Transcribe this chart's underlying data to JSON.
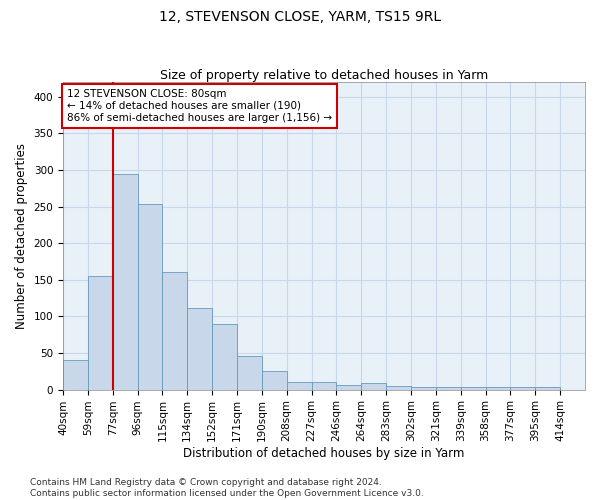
{
  "title": "12, STEVENSON CLOSE, YARM, TS15 9RL",
  "subtitle": "Size of property relative to detached houses in Yarm",
  "xlabel": "Distribution of detached houses by size in Yarm",
  "ylabel": "Number of detached properties",
  "categories": [
    "40sqm",
    "59sqm",
    "77sqm",
    "96sqm",
    "115sqm",
    "134sqm",
    "152sqm",
    "171sqm",
    "190sqm",
    "208sqm",
    "227sqm",
    "246sqm",
    "264sqm",
    "283sqm",
    "302sqm",
    "321sqm",
    "339sqm",
    "358sqm",
    "377sqm",
    "395sqm",
    "414sqm"
  ],
  "values": [
    41,
    155,
    295,
    253,
    160,
    112,
    90,
    46,
    25,
    10,
    10,
    6,
    9,
    5,
    3,
    3,
    3,
    3,
    3,
    3,
    0
  ],
  "bar_color": "#c8d8ea",
  "bar_edge_color": "#6699bb",
  "vline_color": "#cc0000",
  "annotation_text": "12 STEVENSON CLOSE: 80sqm\n← 14% of detached houses are smaller (190)\n86% of semi-detached houses are larger (1,156) →",
  "annotation_box_color": "#ffffff",
  "annotation_box_edge_color": "#cc0000",
  "ylim": [
    0,
    420
  ],
  "yticks": [
    0,
    50,
    100,
    150,
    200,
    250,
    300,
    350,
    400
  ],
  "grid_color": "#c8d8ea",
  "background_color": "#e8f0f8",
  "footer": "Contains HM Land Registry data © Crown copyright and database right 2024.\nContains public sector information licensed under the Open Government Licence v3.0.",
  "title_fontsize": 10,
  "subtitle_fontsize": 9,
  "xlabel_fontsize": 8.5,
  "ylabel_fontsize": 8.5,
  "tick_fontsize": 7.5,
  "annotation_fontsize": 7.5,
  "footer_fontsize": 6.5,
  "vline_position": 2
}
